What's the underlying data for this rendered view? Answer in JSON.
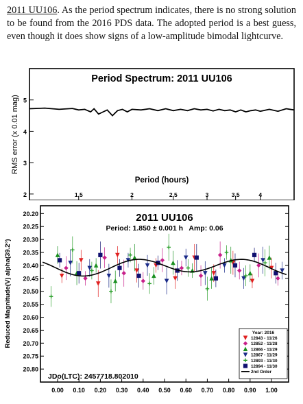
{
  "text": {
    "object_link": "2011 UU106",
    "paragraph_rest": ". As the period spectrum indicates, there is no strong solution to be found from the 2016 PDS data. The adopted period is a best guess, even though it does show signs of a low-amplitude bimodal lightcurve."
  },
  "chart_data": [
    {
      "type": "line",
      "title": "Period Spectrum: 2011 UU106",
      "xlabel": "Period (hours)",
      "ylabel": "RMS error (x 0.01 mag)",
      "x_scale": "log",
      "xlim": [
        1.15,
        4.8
      ],
      "ylim": [
        1.8,
        6.0
      ],
      "x_ticks": [
        1.5,
        2,
        2.5,
        3,
        3.5,
        4
      ],
      "x_tick_labels": [
        "1.5",
        "2",
        "2.5",
        "3",
        "3.5",
        "4"
      ],
      "y_ticks": [
        2,
        3,
        4,
        5
      ],
      "y_tick_labels": [
        "2",
        "3",
        "4",
        "5"
      ],
      "series": [
        {
          "x": [
            1.15,
            1.25,
            1.35,
            1.45,
            1.5,
            1.55,
            1.6,
            1.63,
            1.67,
            1.7,
            1.75,
            1.8,
            1.85,
            1.9,
            1.95,
            2.0,
            2.1,
            2.2,
            2.3,
            2.4,
            2.5,
            2.6,
            2.7,
            2.8,
            2.9,
            3.0,
            3.1,
            3.2,
            3.3,
            3.4,
            3.5,
            3.6,
            3.7,
            3.8,
            3.9,
            4.0,
            4.2,
            4.4,
            4.6,
            4.8
          ],
          "y": [
            4.72,
            4.74,
            4.7,
            4.73,
            4.68,
            4.7,
            4.62,
            4.72,
            4.55,
            4.6,
            4.68,
            4.5,
            4.66,
            4.7,
            4.62,
            4.7,
            4.68,
            4.72,
            4.66,
            4.72,
            4.66,
            4.7,
            4.66,
            4.72,
            4.68,
            4.7,
            4.65,
            4.7,
            4.66,
            4.68,
            4.62,
            4.68,
            4.62,
            4.66,
            4.68,
            4.64,
            4.7,
            4.64,
            4.72,
            4.68
          ],
          "color": "#000000"
        }
      ]
    },
    {
      "type": "scatter",
      "title": "2011 UU106",
      "subtitle": "Period: 1.850 ± 0.001 h   Amp: 0.06",
      "ylabel": "Reduced Magnitude(V) alpha(39.2°)",
      "annotation": "JDo(LTC): 2457718.802010",
      "xlim": [
        -0.08,
        1.08
      ],
      "ylim": [
        20.85,
        20.17
      ],
      "y_inverted": true,
      "x_ticks": [
        0,
        0.1,
        0.2,
        0.3,
        0.4,
        0.5,
        0.6,
        0.7,
        0.8,
        0.9,
        1.0
      ],
      "x_tick_labels": [
        "0.00",
        "0.10",
        "0.20",
        "0.30",
        "0.40",
        "0.50",
        "0.60",
        "0.70",
        "0.80",
        "0.90",
        "1.00"
      ],
      "y_ticks": [
        20.2,
        20.25,
        20.3,
        20.35,
        20.4,
        20.45,
        20.5,
        20.55,
        20.6,
        20.65,
        20.7,
        20.75,
        20.8
      ],
      "y_tick_labels": [
        "20.20",
        "20.25",
        "20.30",
        "20.35",
        "20.40",
        "20.45",
        "20.50",
        "20.55",
        "20.60",
        "20.65",
        "20.70",
        "20.75",
        "20.80"
      ],
      "legend_title": "Year: 2016",
      "legend_position": "bottom-right",
      "series": [
        {
          "name": "12843 - 11/26",
          "color": "#e02020",
          "marker": "triangle-down",
          "x": [
            0.02,
            0.11,
            0.19,
            0.28,
            0.37,
            0.46,
            0.55,
            0.64,
            0.73,
            0.82,
            0.91,
            1.0
          ],
          "y": [
            20.44,
            20.38,
            20.47,
            20.36,
            20.42,
            20.4,
            20.45,
            20.37,
            20.43,
            20.39,
            20.46,
            20.41
          ]
        },
        {
          "name": "12852 - 11/28",
          "color": "#c8208a",
          "marker": "diamond",
          "x": [
            0.04,
            0.13,
            0.22,
            0.31,
            0.4,
            0.49,
            0.58,
            0.67,
            0.76,
            0.85,
            0.94,
            1.03
          ],
          "y": [
            20.41,
            20.45,
            20.37,
            20.43,
            20.46,
            20.38,
            20.41,
            20.44,
            20.36,
            20.42,
            20.4,
            20.45
          ]
        },
        {
          "name": "12866 - 11/29",
          "color": "#1a9020",
          "marker": "triangle-up",
          "x": [
            0.0,
            0.09,
            0.18,
            0.27,
            0.36,
            0.45,
            0.54,
            0.63,
            0.72,
            0.81,
            0.9,
            0.99
          ],
          "y": [
            20.36,
            20.43,
            20.4,
            20.46,
            20.37,
            20.44,
            20.39,
            20.42,
            20.45,
            20.38,
            20.43,
            20.37
          ]
        },
        {
          "name": "12867 - 11/29",
          "color": "#1a2a88",
          "marker": "triangle-down",
          "x": [
            0.06,
            0.15,
            0.24,
            0.33,
            0.42,
            0.51,
            0.6,
            0.69,
            0.78,
            0.87,
            0.96,
            1.05
          ],
          "y": [
            20.39,
            20.41,
            20.44,
            20.38,
            20.4,
            20.46,
            20.37,
            20.43,
            20.4,
            20.45,
            20.38,
            20.42
          ]
        },
        {
          "name": "12893 - 11/30",
          "color": "#2ca02c",
          "marker": "plus",
          "x": [
            -0.03,
            0.07,
            0.16,
            0.25,
            0.34,
            0.43,
            0.52,
            0.61,
            0.7,
            0.79,
            0.88,
            0.97
          ],
          "y": [
            20.52,
            20.34,
            20.42,
            20.5,
            20.36,
            20.47,
            20.33,
            20.41,
            20.49,
            20.35,
            20.44,
            20.39
          ]
        },
        {
          "name": "12894 - 11/30",
          "color": "#101070",
          "marker": "square",
          "x": [
            0.01,
            0.1,
            0.2,
            0.29,
            0.38,
            0.47,
            0.56,
            0.65,
            0.74,
            0.83,
            0.92,
            1.02
          ],
          "y": [
            20.38,
            20.43,
            20.36,
            20.41,
            20.44,
            20.39,
            20.42,
            20.37,
            20.45,
            20.4,
            20.36,
            20.43
          ]
        }
      ],
      "fit": {
        "name": "2nd Order",
        "color": "#000000",
        "mean": 20.405,
        "amp1": 0.008,
        "amp2": 0.028,
        "phase": 0.12
      }
    }
  ]
}
